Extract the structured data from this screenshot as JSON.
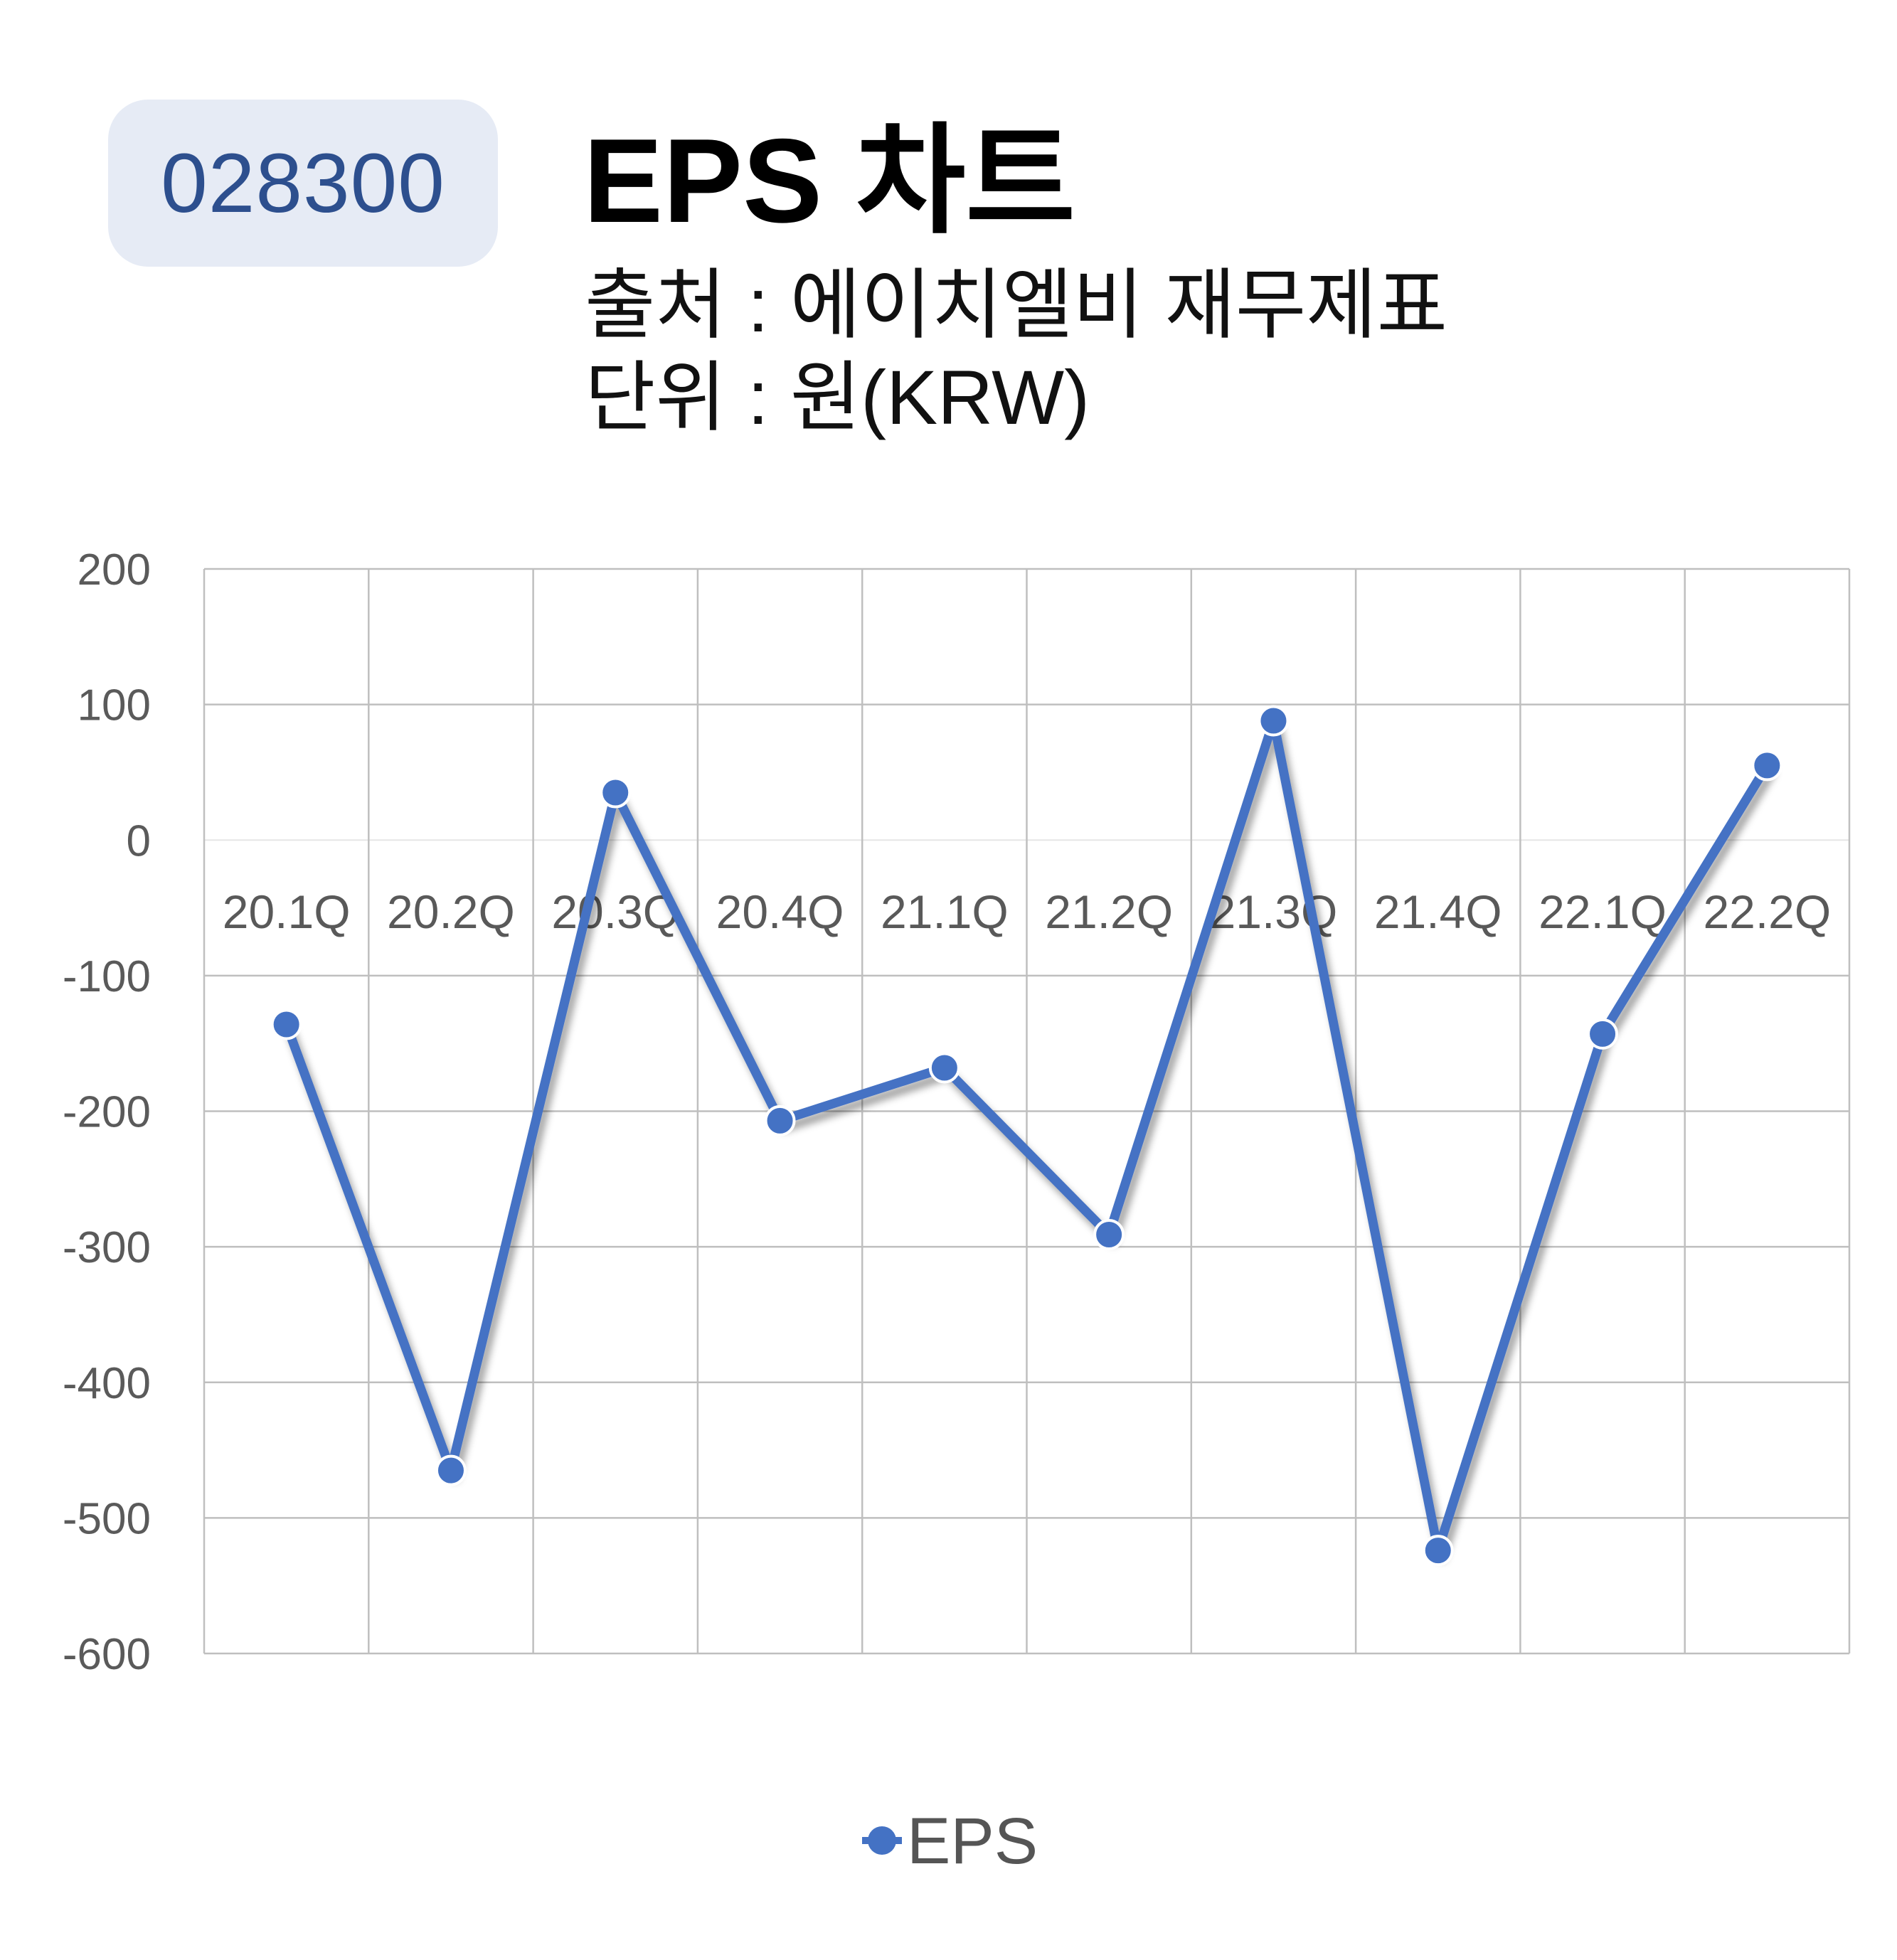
{
  "header": {
    "code": "028300",
    "title": "EPS 차트",
    "source_line": "출처 : 에이치엘비 재무제표",
    "unit_line": "단위 : 원(KRW)"
  },
  "colors": {
    "badge_bg": "#e6ebf5",
    "badge_text": "#2d4f8e",
    "series": "#4472c4",
    "grid": "#bfbfbf"
  },
  "chart_data": {
    "type": "line",
    "title": "EPS 차트",
    "xlabel": "",
    "ylabel": "",
    "categories": [
      "20.1Q",
      "20.2Q",
      "20.3Q",
      "20.4Q",
      "21.1Q",
      "21.2Q",
      "21.3Q",
      "21.4Q",
      "22.1Q",
      "22.2Q"
    ],
    "series": [
      {
        "name": "EPS",
        "values": [
          -136,
          -465,
          35,
          -207,
          -168,
          -291,
          88,
          -524,
          -143,
          55
        ]
      }
    ],
    "ylim": [
      -600,
      200
    ],
    "yticks": [
      "200",
      "100",
      "0",
      "-100",
      "-200",
      "-300",
      "-400",
      "-500",
      "-600"
    ],
    "grid": true,
    "legend": "bottom",
    "x_tick_labels_position": "below zero line"
  }
}
